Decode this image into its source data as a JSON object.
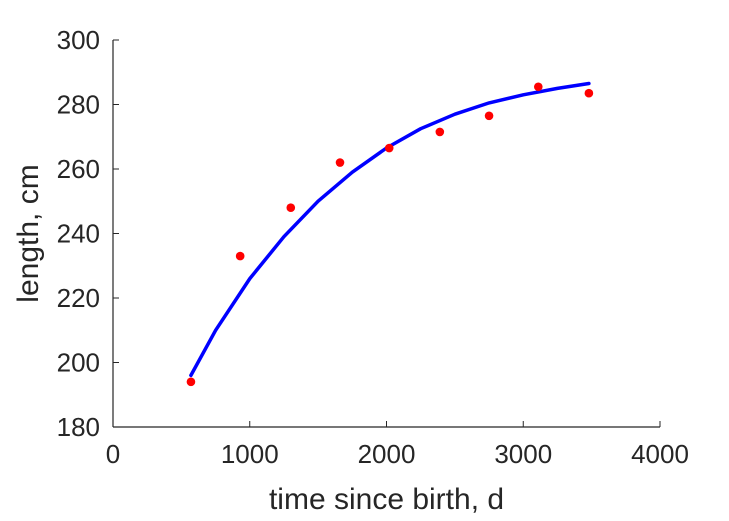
{
  "chart_data": {
    "type": "scatter",
    "title": "",
    "xlabel": "time since birth, d",
    "ylabel": "length, cm",
    "xlim": [
      0,
      4000
    ],
    "ylim": [
      180,
      300
    ],
    "xticks": [
      0,
      1000,
      2000,
      3000,
      4000
    ],
    "yticks": [
      180,
      200,
      220,
      240,
      260,
      280,
      300
    ],
    "grid": false,
    "legend": "none",
    "series": [
      {
        "type": "scatter",
        "color": "#ff0000",
        "x": [
          570,
          930,
          1300,
          1660,
          2020,
          2390,
          2750,
          3110,
          3480
        ],
        "y": [
          194,
          233,
          248,
          262,
          266.5,
          271.5,
          276.5,
          285.5,
          283.5
        ]
      },
      {
        "type": "line",
        "color": "#0000ff",
        "x": [
          570,
          750,
          1000,
          1250,
          1500,
          1750,
          2000,
          2250,
          2500,
          2750,
          3000,
          3250,
          3480
        ],
        "y": [
          196,
          210,
          226,
          239,
          250,
          259,
          266.5,
          272.5,
          277,
          280.5,
          283,
          285,
          286.5
        ]
      }
    ]
  }
}
